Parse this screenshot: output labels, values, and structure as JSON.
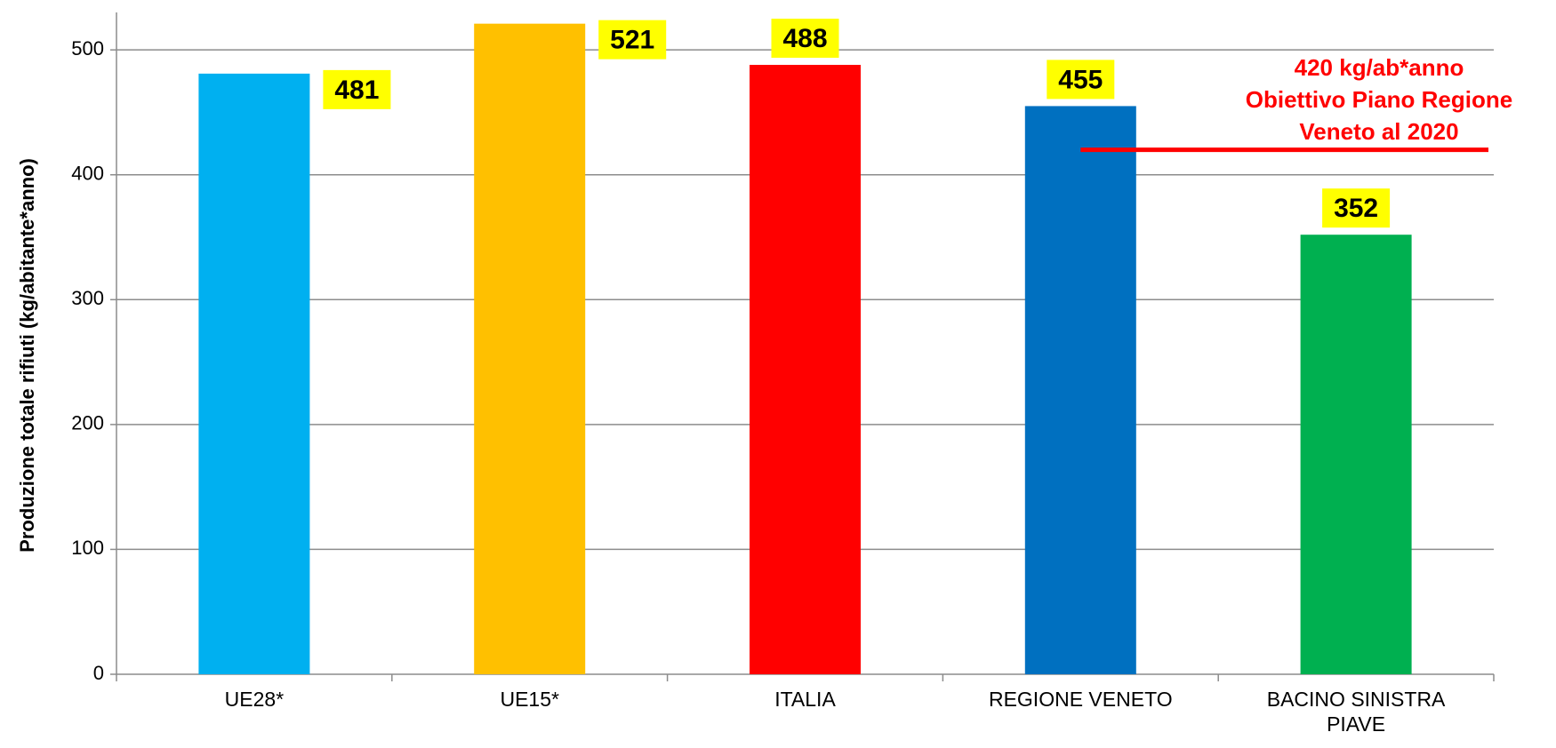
{
  "chart_data": {
    "type": "bar",
    "y_label": "Produzione totale  rifiuti (kg/abitante*anno)",
    "categories": [
      "UE28*",
      "UE15*",
      "ITALIA",
      "REGIONE  VENETO",
      "BACINO  SINISTRA\nPIAVE"
    ],
    "values": [
      481,
      521,
      488,
      455,
      352
    ],
    "colors": [
      "#00b0f0",
      "#ffc000",
      "#ff0000",
      "#0070c0",
      "#00b050"
    ],
    "ylim": [
      0,
      530
    ],
    "yticks": [
      0,
      100,
      200,
      300,
      400,
      500
    ],
    "grid": true,
    "reference": {
      "value": 420,
      "color": "#ff0000",
      "label": [
        "420 kg/ab*anno",
        "Obiettivo Piano Regione",
        "Veneto al 2020"
      ]
    }
  }
}
